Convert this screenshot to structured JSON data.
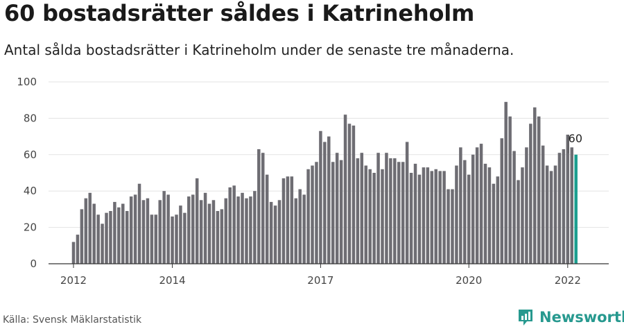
{
  "header": {
    "title": "60 bostadsrätter såldes i Katrineholm",
    "subtitle": "Antal sålda bostadsrätter i Katrineholm under de senaste tre månaderna."
  },
  "footer": {
    "source": "Källa: Svensk Mäklarstatistik",
    "brand": "Newsworthy",
    "brand_icon": "newsworthy-logo-icon"
  },
  "colors": {
    "bar": "#6e6d73",
    "highlight": "#1b9e8f",
    "grid": "#e3e3e3",
    "axis": "#333333",
    "brand": "#27998f"
  },
  "chart_data": {
    "type": "bar",
    "title": "60 bostadsrätter såldes i Katrineholm",
    "subtitle": "Antal sålda bostadsrätter i Katrineholm under de senaste tre månaderna.",
    "xlabel": "",
    "ylabel": "",
    "ylim": [
      0,
      100
    ],
    "yticks": [
      0,
      20,
      40,
      60,
      80,
      100
    ],
    "grid": true,
    "x_tick_labels": [
      {
        "label": "2012",
        "month_index": 0
      },
      {
        "label": "2014",
        "month_index": 24
      },
      {
        "label": "2017",
        "month_index": 60
      },
      {
        "label": "2020",
        "month_index": 96
      },
      {
        "label": "2022",
        "month_index": 120
      }
    ],
    "start": "2012-01",
    "values": [
      12,
      16,
      30,
      36,
      39,
      33,
      27,
      22,
      28,
      29,
      34,
      31,
      33,
      29,
      37,
      38,
      44,
      35,
      36,
      27,
      27,
      35,
      40,
      38,
      26,
      27,
      32,
      28,
      37,
      38,
      47,
      35,
      39,
      33,
      35,
      29,
      30,
      36,
      42,
      43,
      37,
      39,
      36,
      37,
      40,
      63,
      61,
      49,
      34,
      32,
      35,
      47,
      48,
      48,
      36,
      41,
      38,
      52,
      54,
      56,
      73,
      67,
      70,
      56,
      61,
      57,
      82,
      77,
      76,
      58,
      61,
      54,
      52,
      50,
      61,
      52,
      61,
      58,
      58,
      56,
      56,
      67,
      50,
      55,
      49,
      53,
      53,
      51,
      52,
      51,
      51,
      41,
      41,
      54,
      64,
      57,
      49,
      60,
      64,
      66,
      55,
      53,
      44,
      48,
      69,
      89,
      81,
      62,
      46,
      53,
      64,
      77,
      86,
      81,
      65,
      54,
      51,
      54,
      61,
      63,
      71,
      64,
      60
    ],
    "highlight_last": true,
    "annotations": [
      {
        "text": "60",
        "month_index": 122,
        "value": 60
      }
    ]
  }
}
